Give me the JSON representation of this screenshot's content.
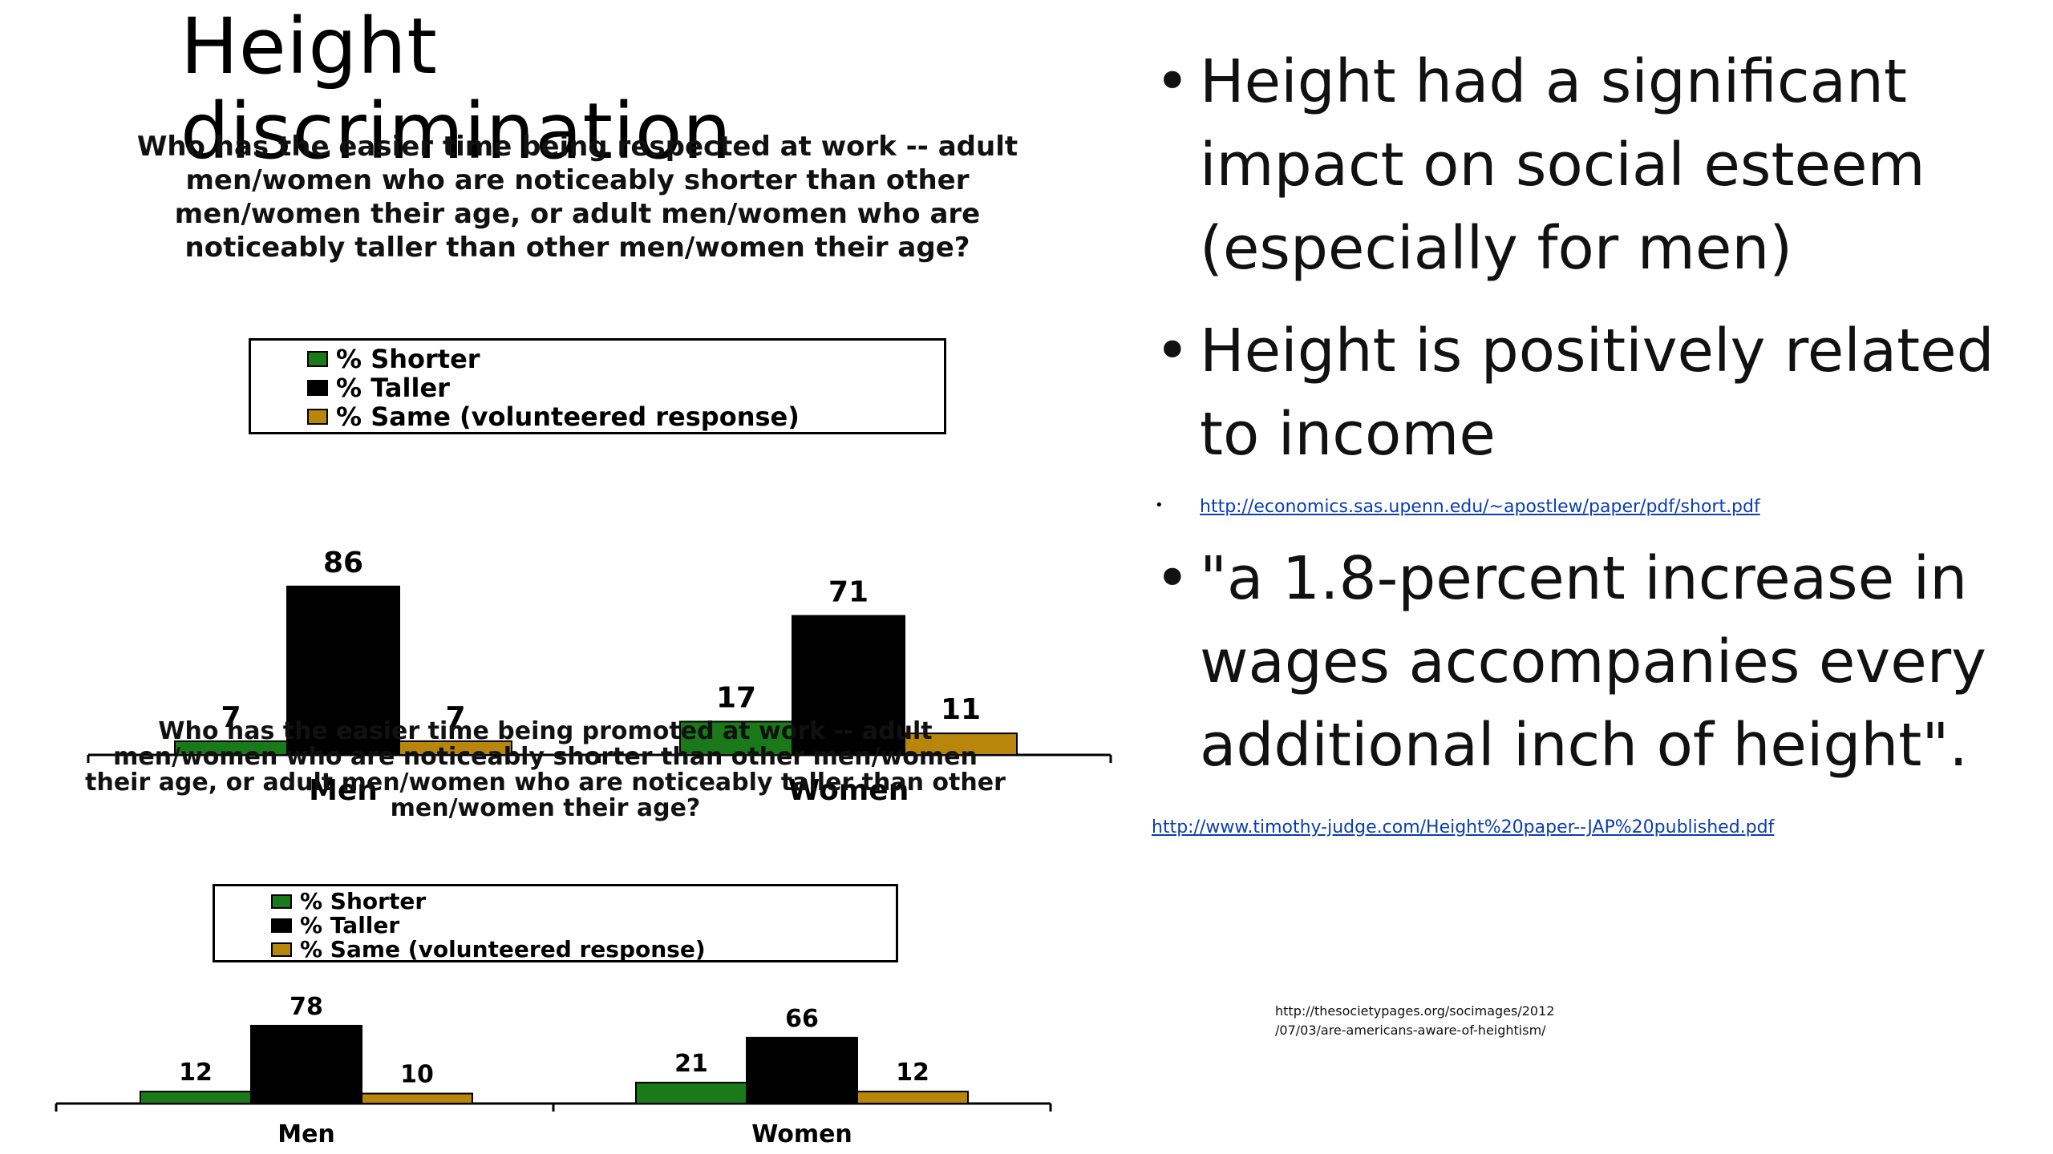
{
  "slide": {
    "title": "Height discrimination",
    "bullets": [
      {
        "text": "Height had a significant impact on social esteem (especially for men)"
      },
      {
        "text": "Height is positively related to income"
      },
      {
        "text": "\"a 1.8-percent increase in wages accompanies every additional inch of height\"."
      }
    ],
    "links": {
      "upenn": "http://economics.sas.upenn.edu/~apostlew/paper/pdf/short.pdf",
      "judge": "http://www.timothy-judge.com/Height%20paper--JAP%20published.pdf"
    },
    "source_note_line1": "http://thesocietypages.org/socimages/2012",
    "source_note_line2": "/07/03/are-americans-aware-of-heightism/"
  },
  "colors": {
    "shorter": "#1a7a1a",
    "taller": "#000000",
    "same": "#b8860b"
  },
  "chart_data": [
    {
      "type": "bar",
      "title": "Who has the easier time being respected at work -- adult men/women who are noticeably shorter than other men/women their age, or adult men/women who are noticeably taller than other men/women their age?",
      "categories": [
        "Men",
        "Women"
      ],
      "series": [
        {
          "name": "% Shorter",
          "values": [
            7,
            17
          ]
        },
        {
          "name": "% Taller",
          "values": [
            86,
            71
          ]
        },
        {
          "name": "% Same (volunteered response)",
          "values": [
            7,
            11
          ]
        }
      ],
      "ylim": [
        0,
        90
      ],
      "legend": "top",
      "grid": false
    },
    {
      "type": "bar",
      "title": "Who has the easier time being promoted at work -- adult men/women who are noticeably shorter than other men/women their age, or adult men/women who are noticeably taller than other men/women their age?",
      "categories": [
        "Men",
        "Women"
      ],
      "series": [
        {
          "name": "% Shorter",
          "values": [
            12,
            21
          ]
        },
        {
          "name": "% Taller",
          "values": [
            78,
            66
          ]
        },
        {
          "name": "% Same (volunteered response)",
          "values": [
            10,
            12
          ]
        }
      ],
      "ylim": [
        0,
        90
      ],
      "legend": "top",
      "grid": false
    }
  ]
}
